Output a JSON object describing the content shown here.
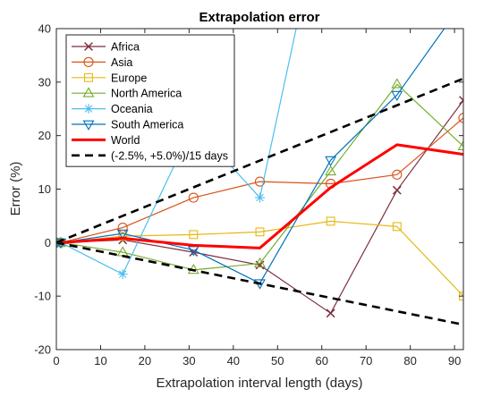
{
  "chart_data": {
    "type": "line",
    "title": "Extrapolation error",
    "xlabel": "Extrapolation interval length (days)",
    "ylabel": "Error (%)",
    "xlim": [
      0,
      92
    ],
    "ylim": [
      -20,
      40
    ],
    "xticks": [
      0,
      10,
      20,
      30,
      40,
      50,
      60,
      70,
      80,
      90
    ],
    "yticks": [
      -20,
      -10,
      0,
      10,
      20,
      30,
      40
    ],
    "grid": false,
    "legend_position": "top-left",
    "series": [
      {
        "name": "Africa",
        "color": "#7e2f3f",
        "marker": "x",
        "line_width": 1.2,
        "x": [
          0,
          1,
          15,
          31,
          46,
          62,
          77,
          92
        ],
        "y": [
          0,
          0,
          0.5,
          -1.8,
          -4.2,
          -13.2,
          9.8,
          26.6
        ]
      },
      {
        "name": "Asia",
        "color": "#d95319",
        "marker": "circle",
        "line_width": 1.2,
        "x": [
          0,
          1,
          15,
          31,
          46,
          62,
          77,
          92
        ],
        "y": [
          0,
          0,
          2.8,
          8.4,
          11.4,
          11.0,
          12.7,
          23.3
        ]
      },
      {
        "name": "Europe",
        "color": "#e6b813",
        "marker": "square",
        "line_width": 1.2,
        "x": [
          0,
          1,
          15,
          31,
          46,
          62,
          77,
          92
        ],
        "y": [
          0,
          0,
          1.2,
          1.5,
          2.0,
          4.0,
          3.0,
          -10.0
        ]
      },
      {
        "name": "North America",
        "color": "#77ac30",
        "marker": "triangle",
        "line_width": 1.2,
        "x": [
          0,
          1,
          15,
          31,
          46,
          62,
          77,
          92
        ],
        "y": [
          0,
          0,
          -1.8,
          -5.1,
          -3.9,
          13.3,
          29.6,
          18.0
        ]
      },
      {
        "name": "Oceania",
        "color": "#4dbeee",
        "marker": "asterisk",
        "line_width": 1.2,
        "x": [
          0,
          1,
          15,
          31,
          46,
          62
        ],
        "y": [
          0,
          0,
          -5.9,
          22.0,
          8.4,
          70.0
        ]
      },
      {
        "name": "South America",
        "color": "#0072bd",
        "marker": "triangle-down",
        "line_width": 1.2,
        "x": [
          0,
          1,
          15,
          31,
          46,
          62,
          77,
          92
        ],
        "y": [
          0,
          0,
          1.7,
          -1.4,
          -7.6,
          15.4,
          27.6,
          45.0
        ]
      },
      {
        "name": "World",
        "color": "#ff0000",
        "marker": "none",
        "line_width": 3,
        "x": [
          0,
          1,
          15,
          31,
          46,
          62,
          77,
          92
        ],
        "y": [
          0,
          0,
          0.8,
          -0.5,
          -1.0,
          10.3,
          18.3,
          16.5
        ]
      },
      {
        "name": "(-2.5%, +5.0%)/15 days",
        "color": "#000000",
        "marker": "none",
        "line_width": 2.6,
        "dashed": true,
        "x": [
          0,
          92
        ],
        "y": [
          0,
          30.667
        ]
      },
      {
        "color": "#000000",
        "marker": "none",
        "line_width": 2.6,
        "dashed": true,
        "x": [
          0,
          92
        ],
        "y": [
          0,
          -15.333
        ]
      }
    ]
  }
}
